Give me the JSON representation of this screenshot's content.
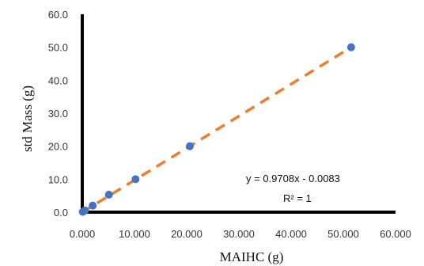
{
  "chart_data": {
    "type": "scatter",
    "xlabel": "MAIHC (g)",
    "ylabel": "std Mass (g)",
    "xlim": [
      0,
      60
    ],
    "ylim": [
      0,
      60
    ],
    "x_ticks": [
      "0.000",
      "10.000",
      "20.000",
      "30.000",
      "40.000",
      "50.000",
      "60.000"
    ],
    "y_ticks": [
      "0.0",
      "10.0",
      "20.0",
      "30.0",
      "40.0",
      "50.0",
      "60.0"
    ],
    "grid": false,
    "points": [
      {
        "x": 0.1,
        "y": 0.1
      },
      {
        "x": 0.5,
        "y": 0.5
      },
      {
        "x": 2.0,
        "y": 2.0
      },
      {
        "x": 5.1,
        "y": 5.3
      },
      {
        "x": 10.2,
        "y": 10.0
      },
      {
        "x": 20.6,
        "y": 20.0
      },
      {
        "x": 51.5,
        "y": 50.0
      }
    ],
    "trendline": {
      "slope": 0.9708,
      "intercept": -0.0083,
      "x_range": [
        0,
        51.5
      ],
      "equation_label": "y = 0.9708x - 0.0083",
      "r2_label": "R² = 1"
    },
    "colors": {
      "points": "#4472C4",
      "trendline": "#ED7D31",
      "axes": "#000000"
    }
  }
}
